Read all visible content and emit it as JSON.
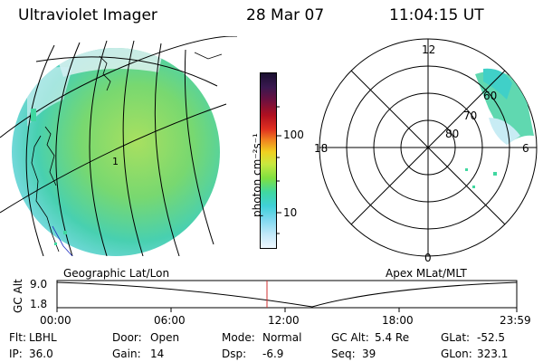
{
  "header": {
    "title": "Ultraviolet Imager",
    "date": "28 Mar 07",
    "time": "11:04:15 UT"
  },
  "left_panel": {
    "label": "Geographic Lat/Lon",
    "marker": "1"
  },
  "colorbar": {
    "unit_label": "photon cm⁻²s⁻¹",
    "ticks": [
      "100",
      "10"
    ]
  },
  "right_panel": {
    "label": "Apex MLat/MLT",
    "mlt_labels": {
      "top": "12",
      "left": "18",
      "right": "6",
      "bottom": "0"
    },
    "lat_labels": [
      "60",
      "70",
      "80"
    ]
  },
  "altitude_plot": {
    "ylabel": "GC Alt",
    "yticks": [
      "9.0",
      "1.8"
    ],
    "xticks": [
      "00:00",
      "06:00",
      "12:00",
      "18:00",
      "23:59"
    ]
  },
  "info": {
    "flt_label": "Flt:",
    "flt_value": "LBHL",
    "ip_label": "IP:",
    "ip_value": "36.0",
    "door_label": "Door:",
    "door_value": "Open",
    "gain_label": "Gain:",
    "gain_value": "14",
    "mode_label": "Mode:",
    "mode_value": "Normal",
    "dsp_label": "Dsp:",
    "dsp_value": "-6.9",
    "gcalt_label": "GC Alt:",
    "gcalt_value": "5.4 Re",
    "seq_label": "Seq:",
    "seq_value": "39",
    "glat_label": "GLat:",
    "glat_value": "-52.5",
    "glon_label": "GLon:",
    "glon_value": "323.1"
  }
}
